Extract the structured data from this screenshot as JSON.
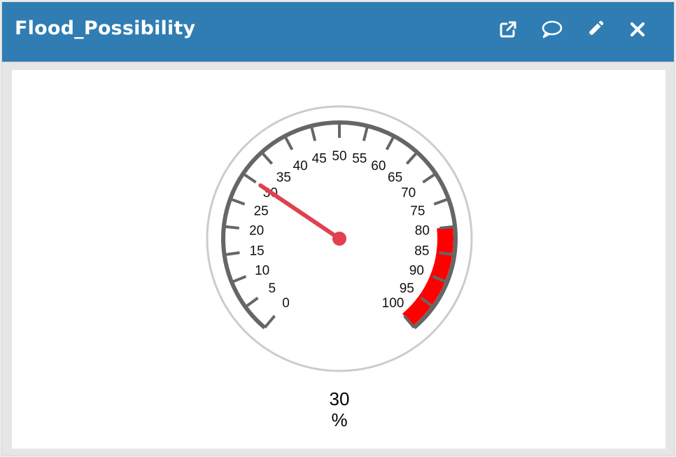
{
  "widget": {
    "title": "Flood_Possibility",
    "actions": [
      {
        "name": "open-external",
        "icon": "external-link-icon"
      },
      {
        "name": "comment",
        "icon": "speech-bubble-icon"
      },
      {
        "name": "edit",
        "icon": "pencil-icon"
      },
      {
        "name": "close",
        "icon": "close-x-icon"
      }
    ]
  },
  "gauge": {
    "value": "30",
    "unit": "%",
    "min": 0,
    "max": 100,
    "major_step": 5,
    "tick_labels": [
      "0",
      "5",
      "10",
      "15",
      "20",
      "25",
      "30",
      "35",
      "40",
      "45",
      "50",
      "55",
      "60",
      "65",
      "70",
      "75",
      "80",
      "85",
      "90",
      "95",
      "100"
    ],
    "danger_from": 80,
    "danger_to": 100,
    "colors": {
      "danger": "#ff0000",
      "needle": "#e04050",
      "ring": "#666666",
      "bezel": "#cccccc",
      "header": "#2f7db3"
    }
  }
}
